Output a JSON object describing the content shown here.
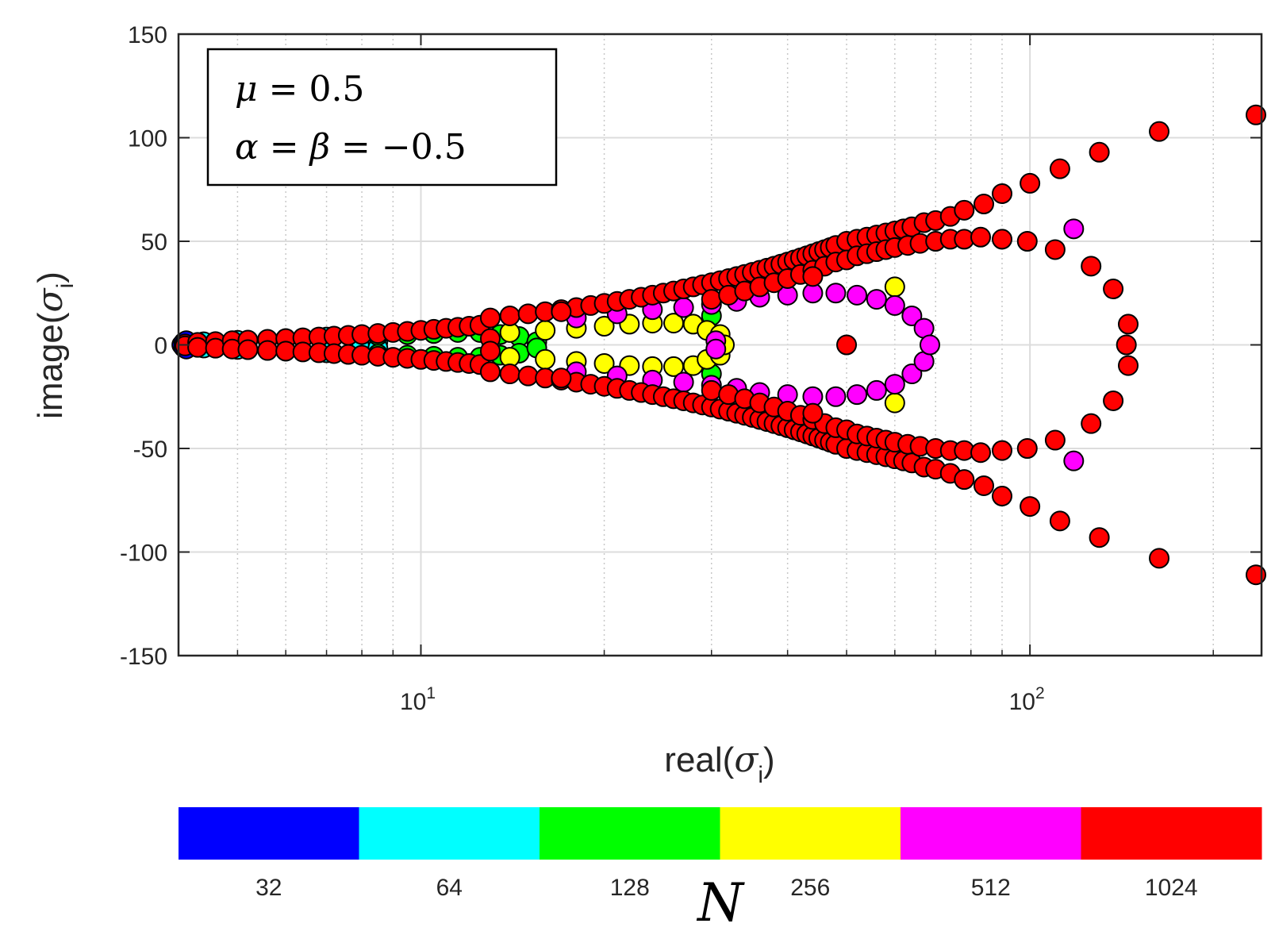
{
  "chart_data": {
    "type": "scatter",
    "xscale": "log",
    "xlim": [
      4,
      240
    ],
    "ylim": [
      -150,
      150
    ],
    "xlabel": {
      "base": "real(",
      "symbol": "σ",
      "sub": "i",
      "close": ")"
    },
    "ylabel": {
      "base": "image(",
      "symbol": "σ",
      "sub": "i",
      "close": ")"
    },
    "xticks": [
      {
        "value": 10,
        "base": "10",
        "exp": "1"
      },
      {
        "value": 100,
        "base": "10",
        "exp": "2"
      }
    ],
    "yticks": [
      150,
      100,
      50,
      0,
      -50,
      -100,
      -150
    ],
    "ytick_labels": [
      "150",
      "100",
      "50",
      "0",
      "-50",
      "-100",
      "-150"
    ],
    "grid": true,
    "annotation": {
      "line1": {
        "sym": "μ",
        "rest": " = 0.5"
      },
      "line2": {
        "sym1": "α",
        "eq1": " = ",
        "sym2": "β",
        "rest": " = −0.5"
      }
    },
    "colorbar": {
      "label": "N",
      "categories": [
        "32",
        "64",
        "128",
        "256",
        "512",
        "1024"
      ],
      "colors": [
        "#0000ff",
        "#00ffff",
        "#00ff00",
        "#ffff00",
        "#ff00ff",
        "#ff0000"
      ]
    },
    "series": [
      {
        "color": "#0000ff",
        "points": [
          [
            4.05,
            0
          ],
          [
            4.08,
            1.2
          ],
          [
            4.08,
            -1.2
          ],
          [
            4.12,
            2.0
          ],
          [
            4.12,
            -2.0
          ]
        ]
      },
      {
        "color": "#00ffff",
        "points": [
          [
            4.4,
            1.5
          ],
          [
            4.4,
            -1.5
          ],
          [
            5,
            2.2
          ],
          [
            5,
            -2.2
          ],
          [
            6,
            3.0
          ],
          [
            6,
            -3.0
          ],
          [
            7,
            3.8
          ],
          [
            7,
            -3.8
          ],
          [
            8,
            0
          ],
          [
            8.5,
            1.5
          ],
          [
            8.5,
            -1.5
          ]
        ]
      },
      {
        "color": "#00ff00",
        "points": [
          [
            8.5,
            4.5
          ],
          [
            8.5,
            -4.5
          ],
          [
            9.5,
            5
          ],
          [
            9.5,
            -5
          ],
          [
            10.5,
            5.5
          ],
          [
            10.5,
            -5.5
          ],
          [
            11.5,
            6
          ],
          [
            11.5,
            -6
          ],
          [
            12.5,
            6
          ],
          [
            12.5,
            -6
          ],
          [
            13.5,
            5
          ],
          [
            13.5,
            -5
          ],
          [
            14.5,
            4
          ],
          [
            14.5,
            -4
          ],
          [
            15.5,
            1.5
          ],
          [
            15.5,
            -1.5
          ],
          [
            30,
            14
          ],
          [
            30,
            -14
          ],
          [
            30.5,
            4
          ],
          [
            30.5,
            -4
          ]
        ]
      },
      {
        "color": "#ffff00",
        "points": [
          [
            14,
            6
          ],
          [
            14,
            -6
          ],
          [
            16,
            7
          ],
          [
            16,
            -7
          ],
          [
            18,
            8
          ],
          [
            18,
            -8
          ],
          [
            20,
            9
          ],
          [
            20,
            -9
          ],
          [
            22,
            10
          ],
          [
            22,
            -10
          ],
          [
            24,
            10.5
          ],
          [
            24,
            -10.5
          ],
          [
            26,
            10.5
          ],
          [
            26,
            -10.5
          ],
          [
            28,
            10
          ],
          [
            28,
            -10
          ],
          [
            29.5,
            7
          ],
          [
            29.5,
            -7
          ],
          [
            31,
            5
          ],
          [
            31,
            -5
          ],
          [
            31.5,
            0
          ],
          [
            60,
            28
          ],
          [
            60,
            -28
          ]
        ]
      },
      {
        "color": "#ff00ff",
        "points": [
          [
            18,
            13
          ],
          [
            18,
            -13
          ],
          [
            21,
            15
          ],
          [
            21,
            -15
          ],
          [
            24,
            17
          ],
          [
            24,
            -17
          ],
          [
            27,
            18
          ],
          [
            27,
            -18
          ],
          [
            30,
            19.5
          ],
          [
            30,
            -19.5
          ],
          [
            33,
            21
          ],
          [
            33,
            -21
          ],
          [
            36,
            23
          ],
          [
            36,
            -23
          ],
          [
            40,
            24
          ],
          [
            40,
            -24
          ],
          [
            44,
            25
          ],
          [
            44,
            -25
          ],
          [
            48,
            25
          ],
          [
            48,
            -25
          ],
          [
            52,
            24
          ],
          [
            52,
            -24
          ],
          [
            56,
            22
          ],
          [
            56,
            -22
          ],
          [
            60,
            19
          ],
          [
            60,
            -19
          ],
          [
            64,
            14
          ],
          [
            64,
            -14
          ],
          [
            67,
            8
          ],
          [
            67,
            -8
          ],
          [
            68.5,
            0
          ],
          [
            30.5,
            2
          ],
          [
            30.5,
            -2
          ],
          [
            118,
            56
          ],
          [
            118,
            -56
          ]
        ]
      },
      {
        "color": "#ff0000",
        "points": [
          [
            4.1,
            0.5
          ],
          [
            4.1,
            -0.5
          ],
          [
            4.3,
            1.2
          ],
          [
            4.3,
            -1.2
          ],
          [
            4.6,
            1.6
          ],
          [
            4.6,
            -1.6
          ],
          [
            4.9,
            2.0
          ],
          [
            4.9,
            -2.0
          ],
          [
            5.2,
            2.3
          ],
          [
            5.2,
            -2.3
          ],
          [
            5.6,
            2.7
          ],
          [
            5.6,
            -2.7
          ],
          [
            6.0,
            3.0
          ],
          [
            6.0,
            -3.0
          ],
          [
            6.4,
            3.4
          ],
          [
            6.4,
            -3.4
          ],
          [
            6.8,
            3.8
          ],
          [
            6.8,
            -3.8
          ],
          [
            7.2,
            4.2
          ],
          [
            7.2,
            -4.2
          ],
          [
            7.6,
            4.6
          ],
          [
            7.6,
            -4.6
          ],
          [
            8.0,
            5.0
          ],
          [
            8.0,
            -5.0
          ],
          [
            8.5,
            5.5
          ],
          [
            8.5,
            -5.5
          ],
          [
            9.0,
            6.0
          ],
          [
            9.0,
            -6.0
          ],
          [
            9.5,
            6.5
          ],
          [
            9.5,
            -6.5
          ],
          [
            10.0,
            7.0
          ],
          [
            10.0,
            -7.0
          ],
          [
            10.5,
            7.5
          ],
          [
            10.5,
            -7.5
          ],
          [
            11.0,
            8.0
          ],
          [
            11.0,
            -8.0
          ],
          [
            11.5,
            8.5
          ],
          [
            11.5,
            -8.5
          ],
          [
            12.0,
            9.0
          ],
          [
            12.0,
            -9.0
          ],
          [
            12.5,
            9.5
          ],
          [
            12.5,
            -9.5
          ],
          [
            13,
            13
          ],
          [
            13,
            -13
          ],
          [
            14,
            14
          ],
          [
            14,
            -14
          ],
          [
            15,
            15
          ],
          [
            15,
            -15
          ],
          [
            16,
            16
          ],
          [
            16,
            -16
          ],
          [
            17,
            17
          ],
          [
            17,
            -17
          ],
          [
            18,
            18
          ],
          [
            18,
            -18
          ],
          [
            19,
            19
          ],
          [
            19,
            -19
          ],
          [
            20,
            20
          ],
          [
            20,
            -20
          ],
          [
            21,
            21
          ],
          [
            21,
            -21
          ],
          [
            22,
            22
          ],
          [
            22,
            -22
          ],
          [
            23,
            23
          ],
          [
            23,
            -23
          ],
          [
            24,
            24
          ],
          [
            24,
            -24
          ],
          [
            25,
            25
          ],
          [
            25,
            -25
          ],
          [
            26,
            26
          ],
          [
            26,
            -26
          ],
          [
            27,
            27
          ],
          [
            27,
            -27
          ],
          [
            28,
            28
          ],
          [
            28,
            -28
          ],
          [
            29,
            29
          ],
          [
            29,
            -29
          ],
          [
            30,
            30
          ],
          [
            30,
            -30
          ],
          [
            31,
            31
          ],
          [
            31,
            -31
          ],
          [
            32,
            32
          ],
          [
            32,
            -32
          ],
          [
            33,
            33
          ],
          [
            33,
            -33
          ],
          [
            34,
            34
          ],
          [
            34,
            -34
          ],
          [
            35,
            35
          ],
          [
            35,
            -35
          ],
          [
            36,
            36
          ],
          [
            36,
            -36
          ],
          [
            37,
            37
          ],
          [
            37,
            -37
          ],
          [
            38,
            38
          ],
          [
            38,
            -38
          ],
          [
            39,
            39
          ],
          [
            39,
            -39
          ],
          [
            40,
            40
          ],
          [
            40,
            -40
          ],
          [
            41,
            41
          ],
          [
            41,
            -41
          ],
          [
            42,
            42
          ],
          [
            42,
            -42
          ],
          [
            43,
            43
          ],
          [
            43,
            -43
          ],
          [
            44,
            44
          ],
          [
            44,
            -44
          ],
          [
            45,
            45
          ],
          [
            45,
            -45
          ],
          [
            46,
            46
          ],
          [
            46,
            -46
          ],
          [
            47,
            47
          ],
          [
            47,
            -47
          ],
          [
            48,
            48
          ],
          [
            48,
            -48
          ],
          [
            50,
            50
          ],
          [
            50,
            -50
          ],
          [
            52,
            51
          ],
          [
            52,
            -51
          ],
          [
            54,
            52
          ],
          [
            54,
            -52
          ],
          [
            56,
            53
          ],
          [
            56,
            -53
          ],
          [
            58,
            54
          ],
          [
            58,
            -54
          ],
          [
            60,
            55
          ],
          [
            60,
            -55
          ],
          [
            62,
            56
          ],
          [
            62,
            -56
          ],
          [
            64,
            57
          ],
          [
            64,
            -57
          ],
          [
            67,
            59
          ],
          [
            67,
            -59
          ],
          [
            70,
            60
          ],
          [
            70,
            -60
          ],
          [
            74,
            62
          ],
          [
            74,
            -62
          ],
          [
            78,
            65
          ],
          [
            78,
            -65
          ],
          [
            84,
            68
          ],
          [
            84,
            -68
          ],
          [
            90,
            73
          ],
          [
            90,
            -73
          ],
          [
            100,
            78
          ],
          [
            100,
            -78
          ],
          [
            112,
            85
          ],
          [
            112,
            -85
          ],
          [
            130,
            93
          ],
          [
            130,
            -93
          ],
          [
            163,
            103
          ],
          [
            163,
            -103
          ],
          [
            235,
            111
          ],
          [
            235,
            -111
          ],
          [
            30,
            22
          ],
          [
            30,
            -22
          ],
          [
            32,
            24
          ],
          [
            32,
            -24
          ],
          [
            34,
            26
          ],
          [
            34,
            -26
          ],
          [
            36,
            28
          ],
          [
            36,
            -28
          ],
          [
            38,
            30
          ],
          [
            38,
            -30
          ],
          [
            40,
            32
          ],
          [
            40,
            -32
          ],
          [
            42,
            34
          ],
          [
            42,
            -34
          ],
          [
            44,
            36
          ],
          [
            44,
            -36
          ],
          [
            46,
            38
          ],
          [
            46,
            -38
          ],
          [
            48,
            40
          ],
          [
            48,
            -40
          ],
          [
            50,
            41
          ],
          [
            50,
            -41
          ],
          [
            52,
            43
          ],
          [
            52,
            -43
          ],
          [
            54,
            44
          ],
          [
            54,
            -44
          ],
          [
            56,
            45
          ],
          [
            56,
            -45
          ],
          [
            58,
            46
          ],
          [
            58,
            -46
          ],
          [
            60,
            47
          ],
          [
            60,
            -47
          ],
          [
            63,
            48
          ],
          [
            63,
            -48
          ],
          [
            66,
            49
          ],
          [
            66,
            -49
          ],
          [
            70,
            50
          ],
          [
            70,
            -50
          ],
          [
            74,
            51
          ],
          [
            74,
            -51
          ],
          [
            78,
            51
          ],
          [
            78,
            -51
          ],
          [
            83,
            52
          ],
          [
            83,
            -52
          ],
          [
            90,
            51
          ],
          [
            90,
            -51
          ],
          [
            99,
            50
          ],
          [
            99,
            -50
          ],
          [
            110,
            46
          ],
          [
            110,
            -46
          ],
          [
            126,
            38
          ],
          [
            126,
            -38
          ],
          [
            137,
            27
          ],
          [
            137,
            -27
          ],
          [
            145,
            10
          ],
          [
            145,
            -10
          ],
          [
            144,
            0
          ],
          [
            13,
            3
          ],
          [
            13,
            -3
          ],
          [
            17,
            16
          ],
          [
            17,
            -16
          ],
          [
            44,
            33
          ],
          [
            44,
            -33
          ],
          [
            50,
            0
          ]
        ]
      }
    ]
  }
}
